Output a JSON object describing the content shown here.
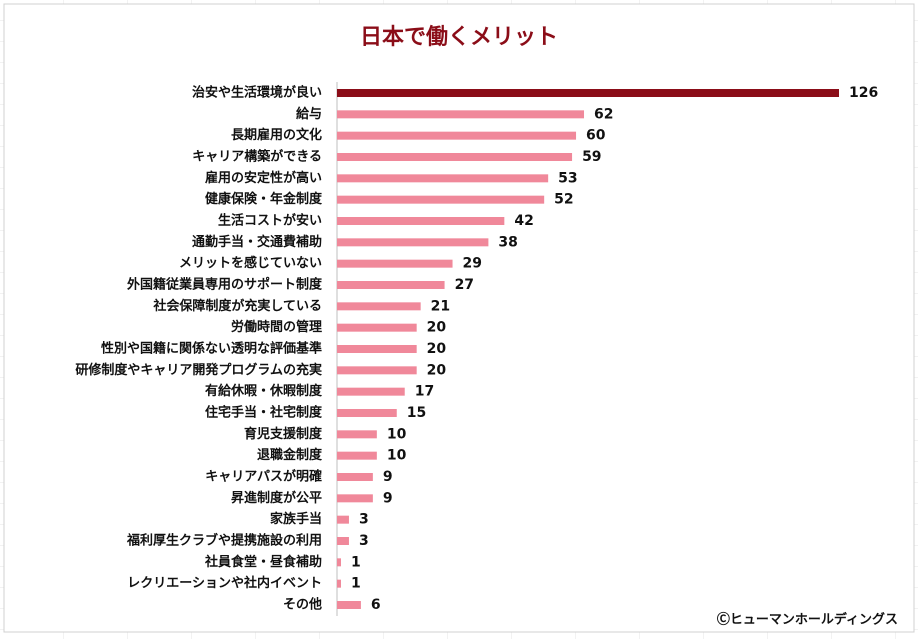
{
  "chart_data": {
    "type": "bar",
    "orientation": "horizontal",
    "title": "日本で働くメリット",
    "categories": [
      "治安や生活環境が良い",
      "給与",
      "長期雇用の文化",
      "キャリア構築ができる",
      "雇用の安定性が高い",
      "健康保険・年金制度",
      "生活コストが安い",
      "通勤手当・交通費補助",
      "メリットを感じていない",
      "外国籍従業員専用のサポート制度",
      "社会保障制度が充実している",
      "労働時間の管理",
      "性別や国籍に関係ない透明な評価基準",
      "研修制度やキャリア開発プログラムの充実",
      "有給休暇・休暇制度",
      "住宅手当・社宅制度",
      "育児支援制度",
      "退職金制度",
      "キャリアパスが明確",
      "昇進制度が公平",
      "家族手当",
      "福利厚生クラブや提携施設の利用",
      "社員食堂・昼食補助",
      "レクリエーションや社内イベント",
      "その他"
    ],
    "values": [
      126,
      62,
      60,
      59,
      53,
      52,
      42,
      38,
      29,
      27,
      21,
      20,
      20,
      20,
      17,
      15,
      10,
      10,
      9,
      9,
      3,
      3,
      1,
      1,
      6
    ],
    "colors": [
      "#8b0d18",
      "#f0889a",
      "#f0889a",
      "#f0889a",
      "#f0889a",
      "#f0889a",
      "#f0889a",
      "#f0889a",
      "#f0889a",
      "#f0889a",
      "#f0889a",
      "#f0889a",
      "#f0889a",
      "#f0889a",
      "#f0889a",
      "#f0889a",
      "#f0889a",
      "#f0889a",
      "#f0889a",
      "#f0889a",
      "#f0889a",
      "#f0889a",
      "#f0889a",
      "#f0889a",
      "#f0889a"
    ],
    "title_color": "#8b0d18",
    "note": "Ⓒヒューマンホールディングス"
  }
}
